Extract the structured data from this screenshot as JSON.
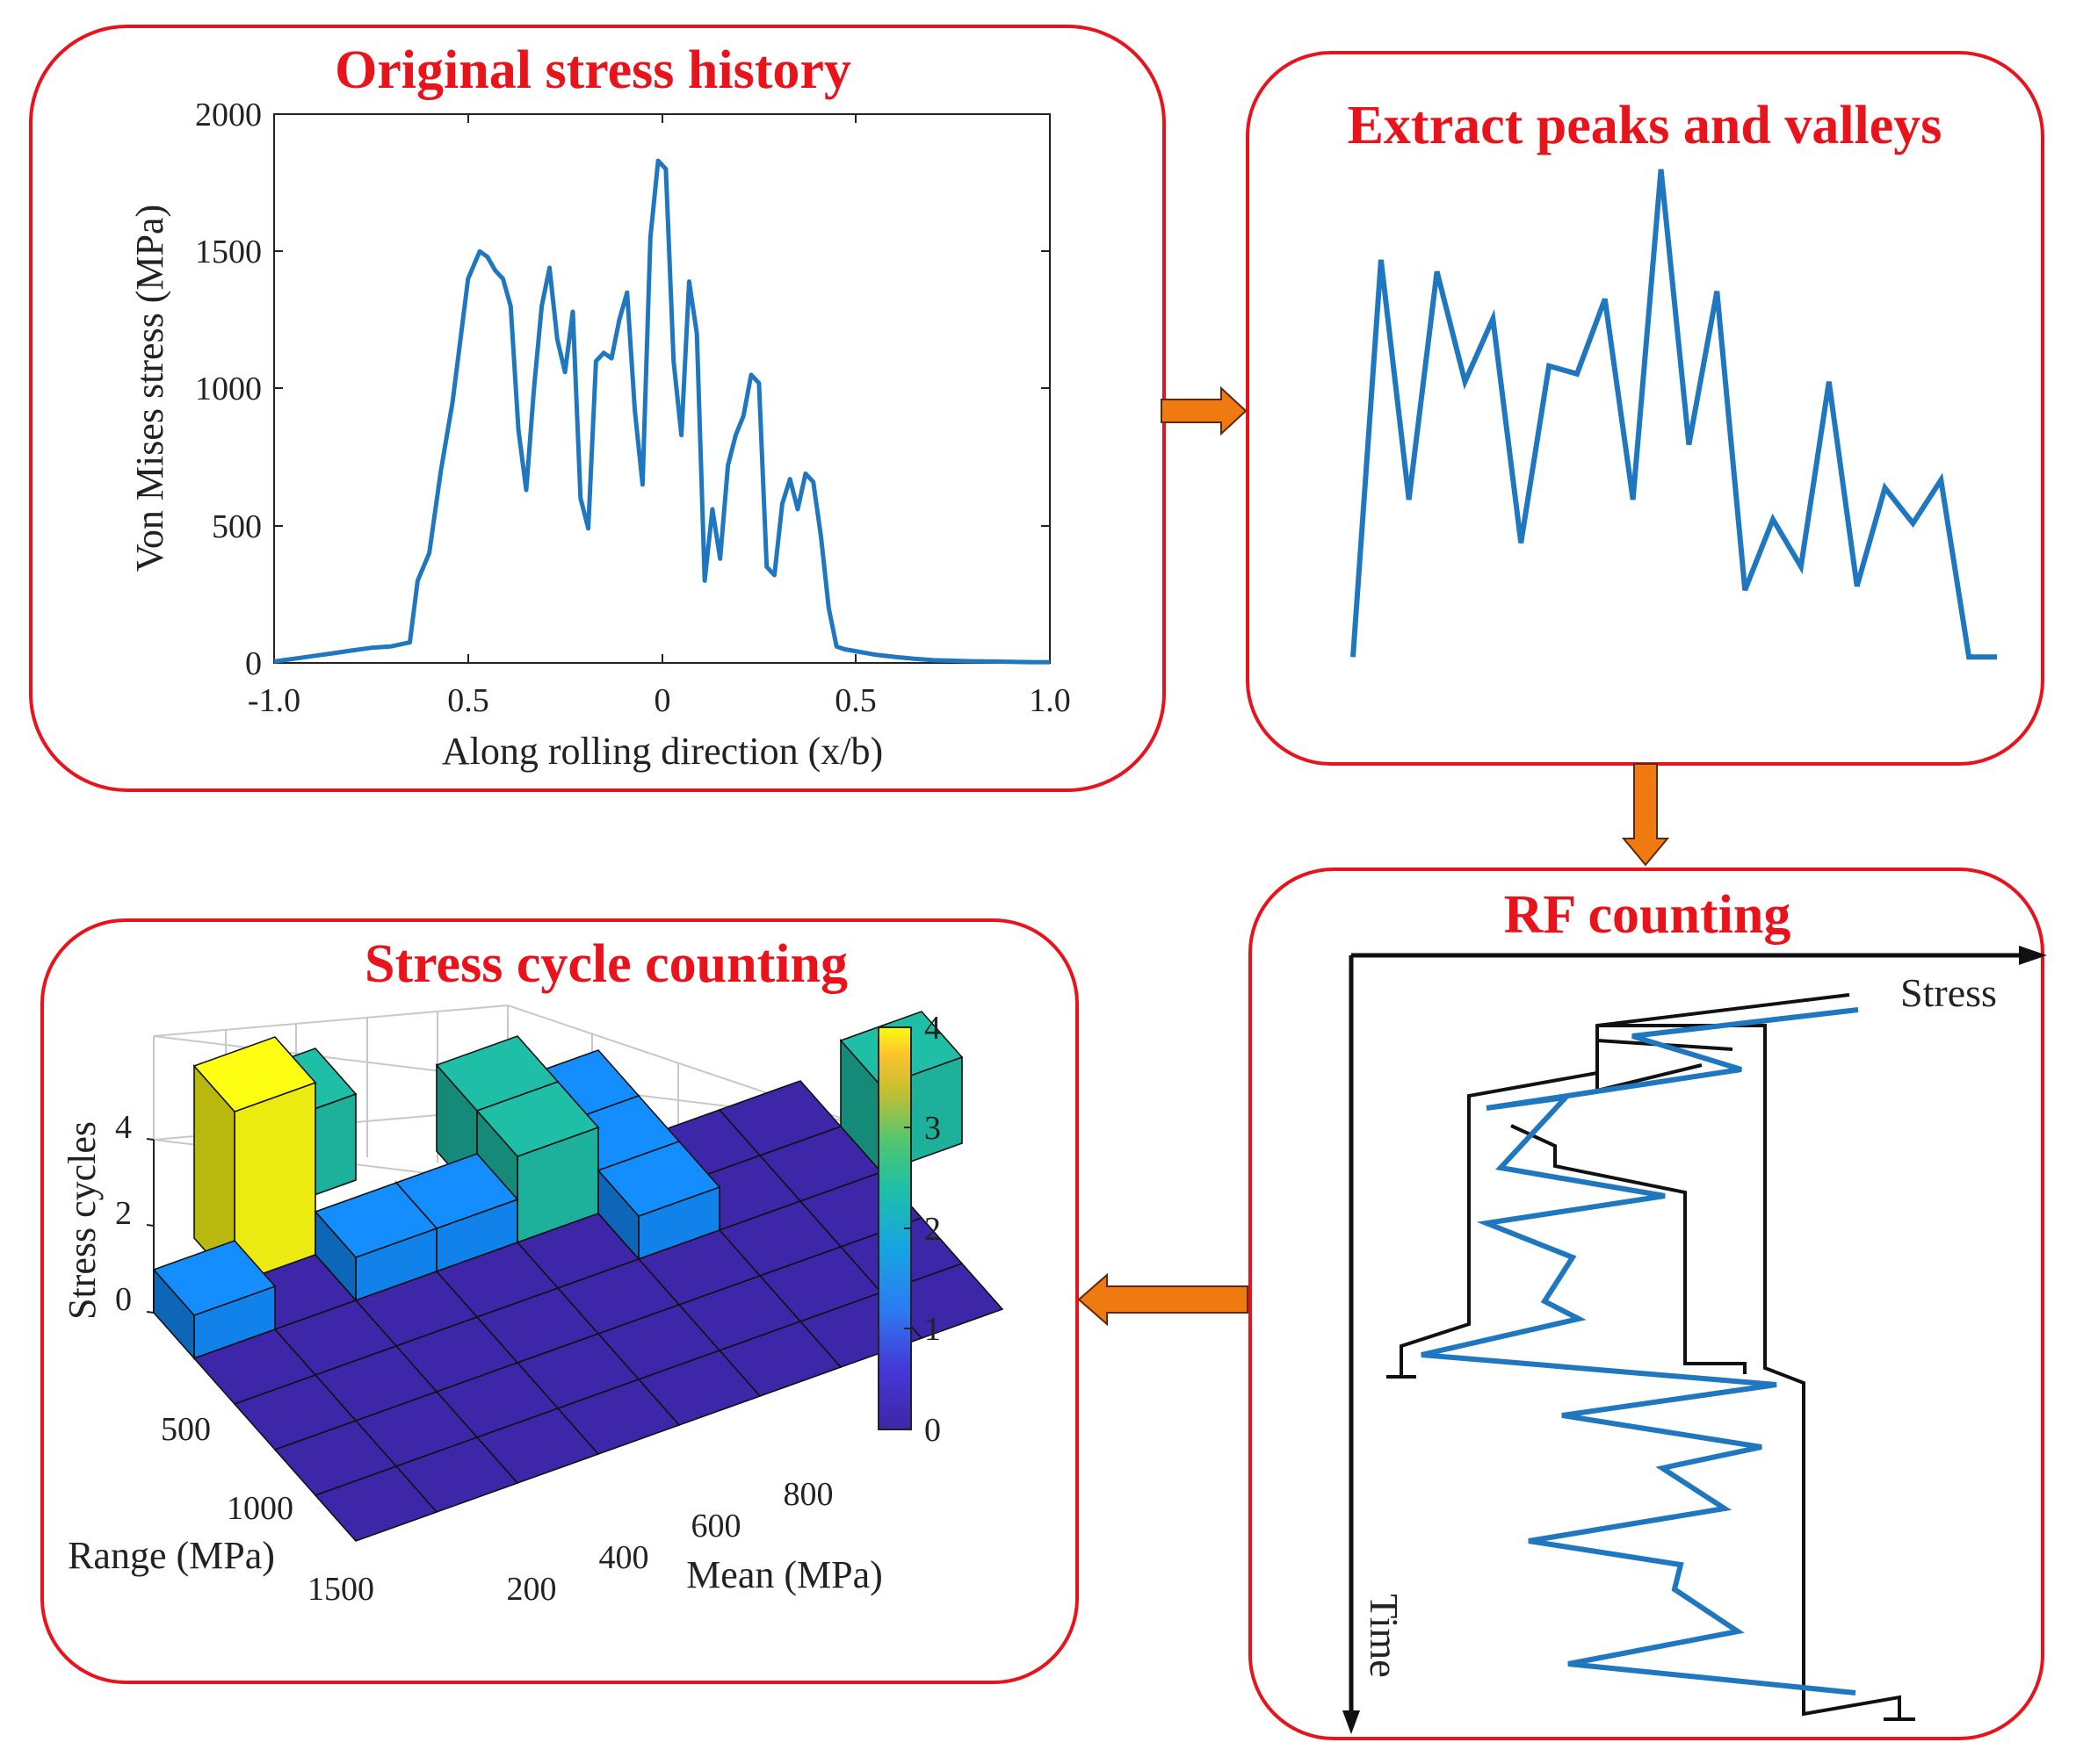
{
  "colors": {
    "panel_border": "#e8131b",
    "title": "#e8131b",
    "line": "#1f77bf",
    "arrow_fill": "#f07a12",
    "arrow_stroke": "#5a2a00",
    "axis": "#222222",
    "bar_base": "#3e26a8",
    "bar_one": "#148dff",
    "bar_two": "#1fbfa7",
    "bar_four": "#ffff14"
  },
  "arrows": [
    "arrow-right-icon",
    "arrow-down-icon",
    "arrow-left-icon"
  ],
  "panels": {
    "original": {
      "title": "Original stress history",
      "chart_data": {
        "type": "line",
        "xlabel": "Along rolling direction (x/b)",
        "ylabel": "Von Mises stress (MPa)",
        "xlim": [
          -1.0,
          1.0
        ],
        "ylim": [
          0,
          2000
        ],
        "x_ticks": [
          "-1.0",
          "0.5",
          "0",
          "0.5",
          "1.0"
        ],
        "y_ticks": [
          "0",
          "500",
          "1000",
          "1500",
          "2000"
        ],
        "series": [
          {
            "x": [
              -1.0,
              -0.95,
              -0.9,
              -0.85,
              -0.8,
              -0.75,
              -0.7,
              -0.65,
              -0.63,
              -0.6,
              -0.57,
              -0.54,
              -0.5,
              -0.47,
              -0.45,
              -0.43,
              -0.41,
              -0.39,
              -0.37,
              -0.35,
              -0.33,
              -0.31,
              -0.29,
              -0.27,
              -0.25,
              -0.23,
              -0.21,
              -0.19,
              -0.17,
              -0.15,
              -0.13,
              -0.11,
              -0.09,
              -0.07,
              -0.05,
              -0.03,
              -0.01,
              0.01,
              0.03,
              0.05,
              0.07,
              0.09,
              0.11,
              0.13,
              0.15,
              0.17,
              0.19,
              0.21,
              0.23,
              0.25,
              0.27,
              0.29,
              0.31,
              0.33,
              0.35,
              0.37,
              0.39,
              0.41,
              0.43,
              0.45,
              0.47,
              0.49,
              0.51,
              0.53,
              0.55,
              0.6,
              0.65,
              0.7,
              0.75,
              0.8,
              0.85,
              0.9,
              0.95,
              1.0
            ],
            "y": [
              5,
              15,
              25,
              35,
              45,
              55,
              60,
              75,
              300,
              400,
              700,
              950,
              1400,
              1500,
              1480,
              1430,
              1400,
              1300,
              850,
              630,
              1000,
              1300,
              1440,
              1180,
              1060,
              1280,
              600,
              490,
              1100,
              1130,
              1110,
              1250,
              1350,
              920,
              650,
              1550,
              1830,
              1800,
              1100,
              830,
              1390,
              1200,
              300,
              560,
              380,
              720,
              830,
              900,
              1050,
              1020,
              350,
              320,
              580,
              670,
              560,
              690,
              660,
              460,
              200,
              60,
              50,
              45,
              40,
              35,
              30,
              22,
              15,
              10,
              8,
              6,
              5,
              4,
              3,
              3
            ]
          }
        ]
      }
    },
    "peaks": {
      "title": "Extract peaks and valleys",
      "chart_data": {
        "type": "line",
        "series": [
          {
            "values": [
              160,
              1170,
              560,
              1140,
              860,
              1020,
              450,
              900,
              880,
              1070,
              560,
              1400,
              700,
              1090,
              330,
              510,
              390,
              860,
              340,
              590,
              500,
              610,
              160,
              160
            ]
          }
        ]
      }
    },
    "rf": {
      "title": "RF counting",
      "x_axis_label": "Stress",
      "y_axis_label": "Time"
    },
    "cycles": {
      "title": "Stress cycle counting",
      "chart_data": {
        "type": "bar3d",
        "zlabel": "Stress cycles",
        "xlabel": "Mean (MPa)",
        "ylabel": "Range (MPa)",
        "z_ticks": [
          "0",
          "2",
          "4"
        ],
        "x_ticks": [
          "200",
          "400",
          "600",
          "800"
        ],
        "y_ticks": [
          "500",
          "1000",
          "1500"
        ],
        "colorbar_ticks": [
          "0",
          "1",
          "2",
          "3",
          "4"
        ],
        "colorbar_range": [
          0,
          4
        ]
      }
    }
  }
}
